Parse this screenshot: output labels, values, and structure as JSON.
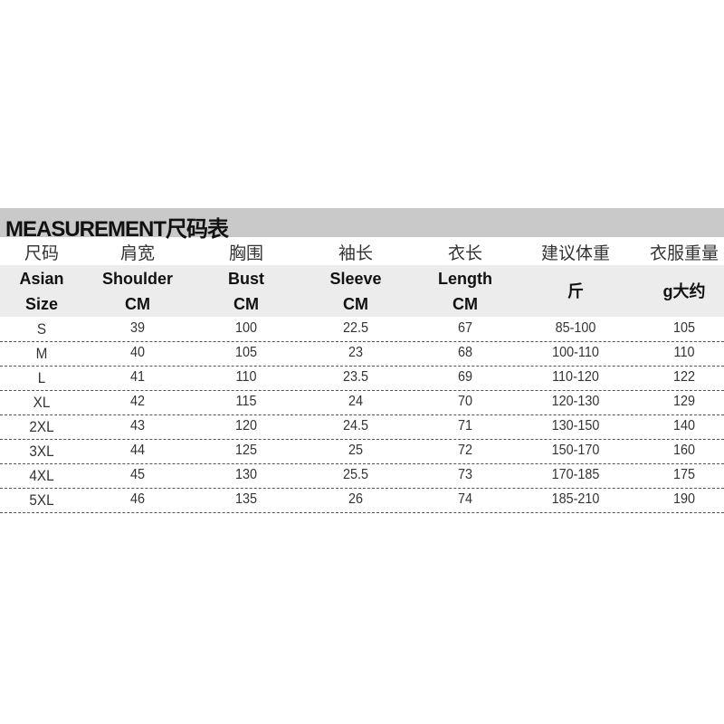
{
  "title": "MEASUREMENT尺码表",
  "header_cn": [
    "尺码",
    "肩宽",
    "胸围",
    "袖长",
    "衣长",
    "建议体重",
    "衣服重量"
  ],
  "header_en": [
    {
      "line1": "Asian",
      "line2": "Size"
    },
    {
      "line1": "Shoulder",
      "line2": "CM"
    },
    {
      "line1": "Bust",
      "line2": "CM"
    },
    {
      "line1": "Sleeve",
      "line2": "CM"
    },
    {
      "line1": "Length",
      "line2": "CM"
    },
    {
      "line1": "斤",
      "line2": ""
    },
    {
      "line1": "g大约",
      "line2": ""
    }
  ],
  "rows": [
    [
      "S",
      "39",
      "100",
      "22.5",
      "67",
      "85-100",
      "105"
    ],
    [
      "M",
      "40",
      "105",
      "23",
      "68",
      "100-110",
      "110"
    ],
    [
      "L",
      "41",
      "110",
      "23.5",
      "69",
      "110-120",
      "122"
    ],
    [
      "XL",
      "42",
      "115",
      "24",
      "70",
      "120-130",
      "129"
    ],
    [
      "2XL",
      "43",
      "120",
      "24.5",
      "71",
      "130-150",
      "140"
    ],
    [
      "3XL",
      "44",
      "125",
      "25",
      "72",
      "150-170",
      "160"
    ],
    [
      "4XL",
      "45",
      "130",
      "25.5",
      "73",
      "170-185",
      "175"
    ],
    [
      "5XL",
      "46",
      "135",
      "26",
      "74",
      "185-210",
      "190"
    ]
  ]
}
